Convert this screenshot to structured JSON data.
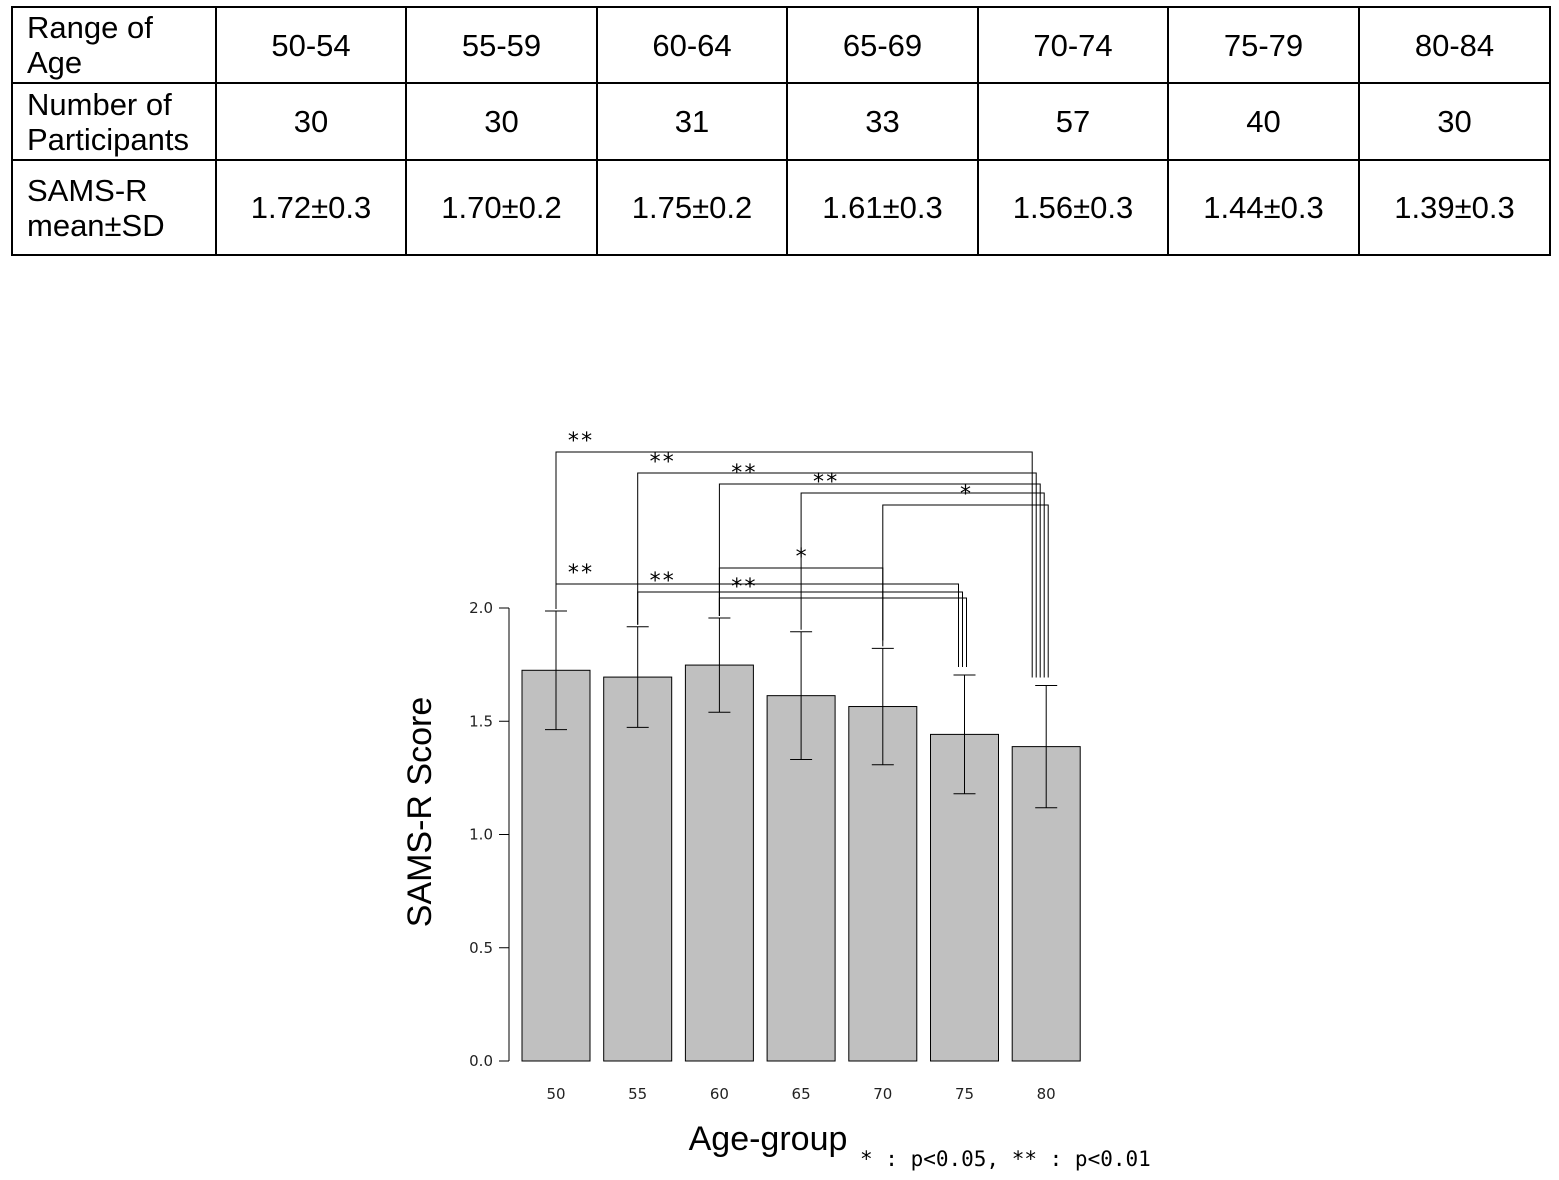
{
  "table": {
    "row_headers": [
      "Range of Age",
      "Number of Participants",
      "SAMS-R mean±SD"
    ],
    "age_ranges": [
      "50-54",
      "55-59",
      "60-64",
      "65-69",
      "70-74",
      "75-79",
      "80-84"
    ],
    "participants": [
      "30",
      "30",
      "31",
      "33",
      "57",
      "40",
      "30"
    ],
    "mean_sd": [
      "1.72±0.3",
      "1.70±0.2",
      "1.75±0.2",
      "1.61±0.3",
      "1.56±0.3",
      "1.44±0.3",
      "1.39±0.3"
    ]
  },
  "chart_data": {
    "type": "bar",
    "categories": [
      "50",
      "55",
      "60",
      "65",
      "70",
      "75",
      "80"
    ],
    "values": [
      1.725,
      1.695,
      1.748,
      1.613,
      1.565,
      1.442,
      1.388
    ],
    "errors": [
      0.262,
      0.222,
      0.208,
      0.282,
      0.257,
      0.262,
      0.27
    ],
    "xlabel": "Age-group",
    "ylabel": "SAMS-R Score",
    "ylim": [
      0,
      2.0
    ],
    "yticks": [
      "0.0",
      "0.5",
      "1.0",
      "1.5",
      "2.0"
    ],
    "bar_color": "#c0c0c0",
    "significance": [
      {
        "from": "50",
        "to": "80",
        "label": "**"
      },
      {
        "from": "55",
        "to": "80",
        "label": "**"
      },
      {
        "from": "60",
        "to": "80",
        "label": "**"
      },
      {
        "from": "65",
        "to": "80",
        "label": "**"
      },
      {
        "from": "70",
        "to": "80",
        "label": "*"
      },
      {
        "from": "60",
        "to": "70",
        "label": "*"
      },
      {
        "from": "50",
        "to": "75",
        "label": "**"
      },
      {
        "from": "55",
        "to": "75",
        "label": "**"
      },
      {
        "from": "60",
        "to": "75",
        "label": "**"
      }
    ],
    "legend_note": "* : p<0.05, ** : p<0.01"
  }
}
